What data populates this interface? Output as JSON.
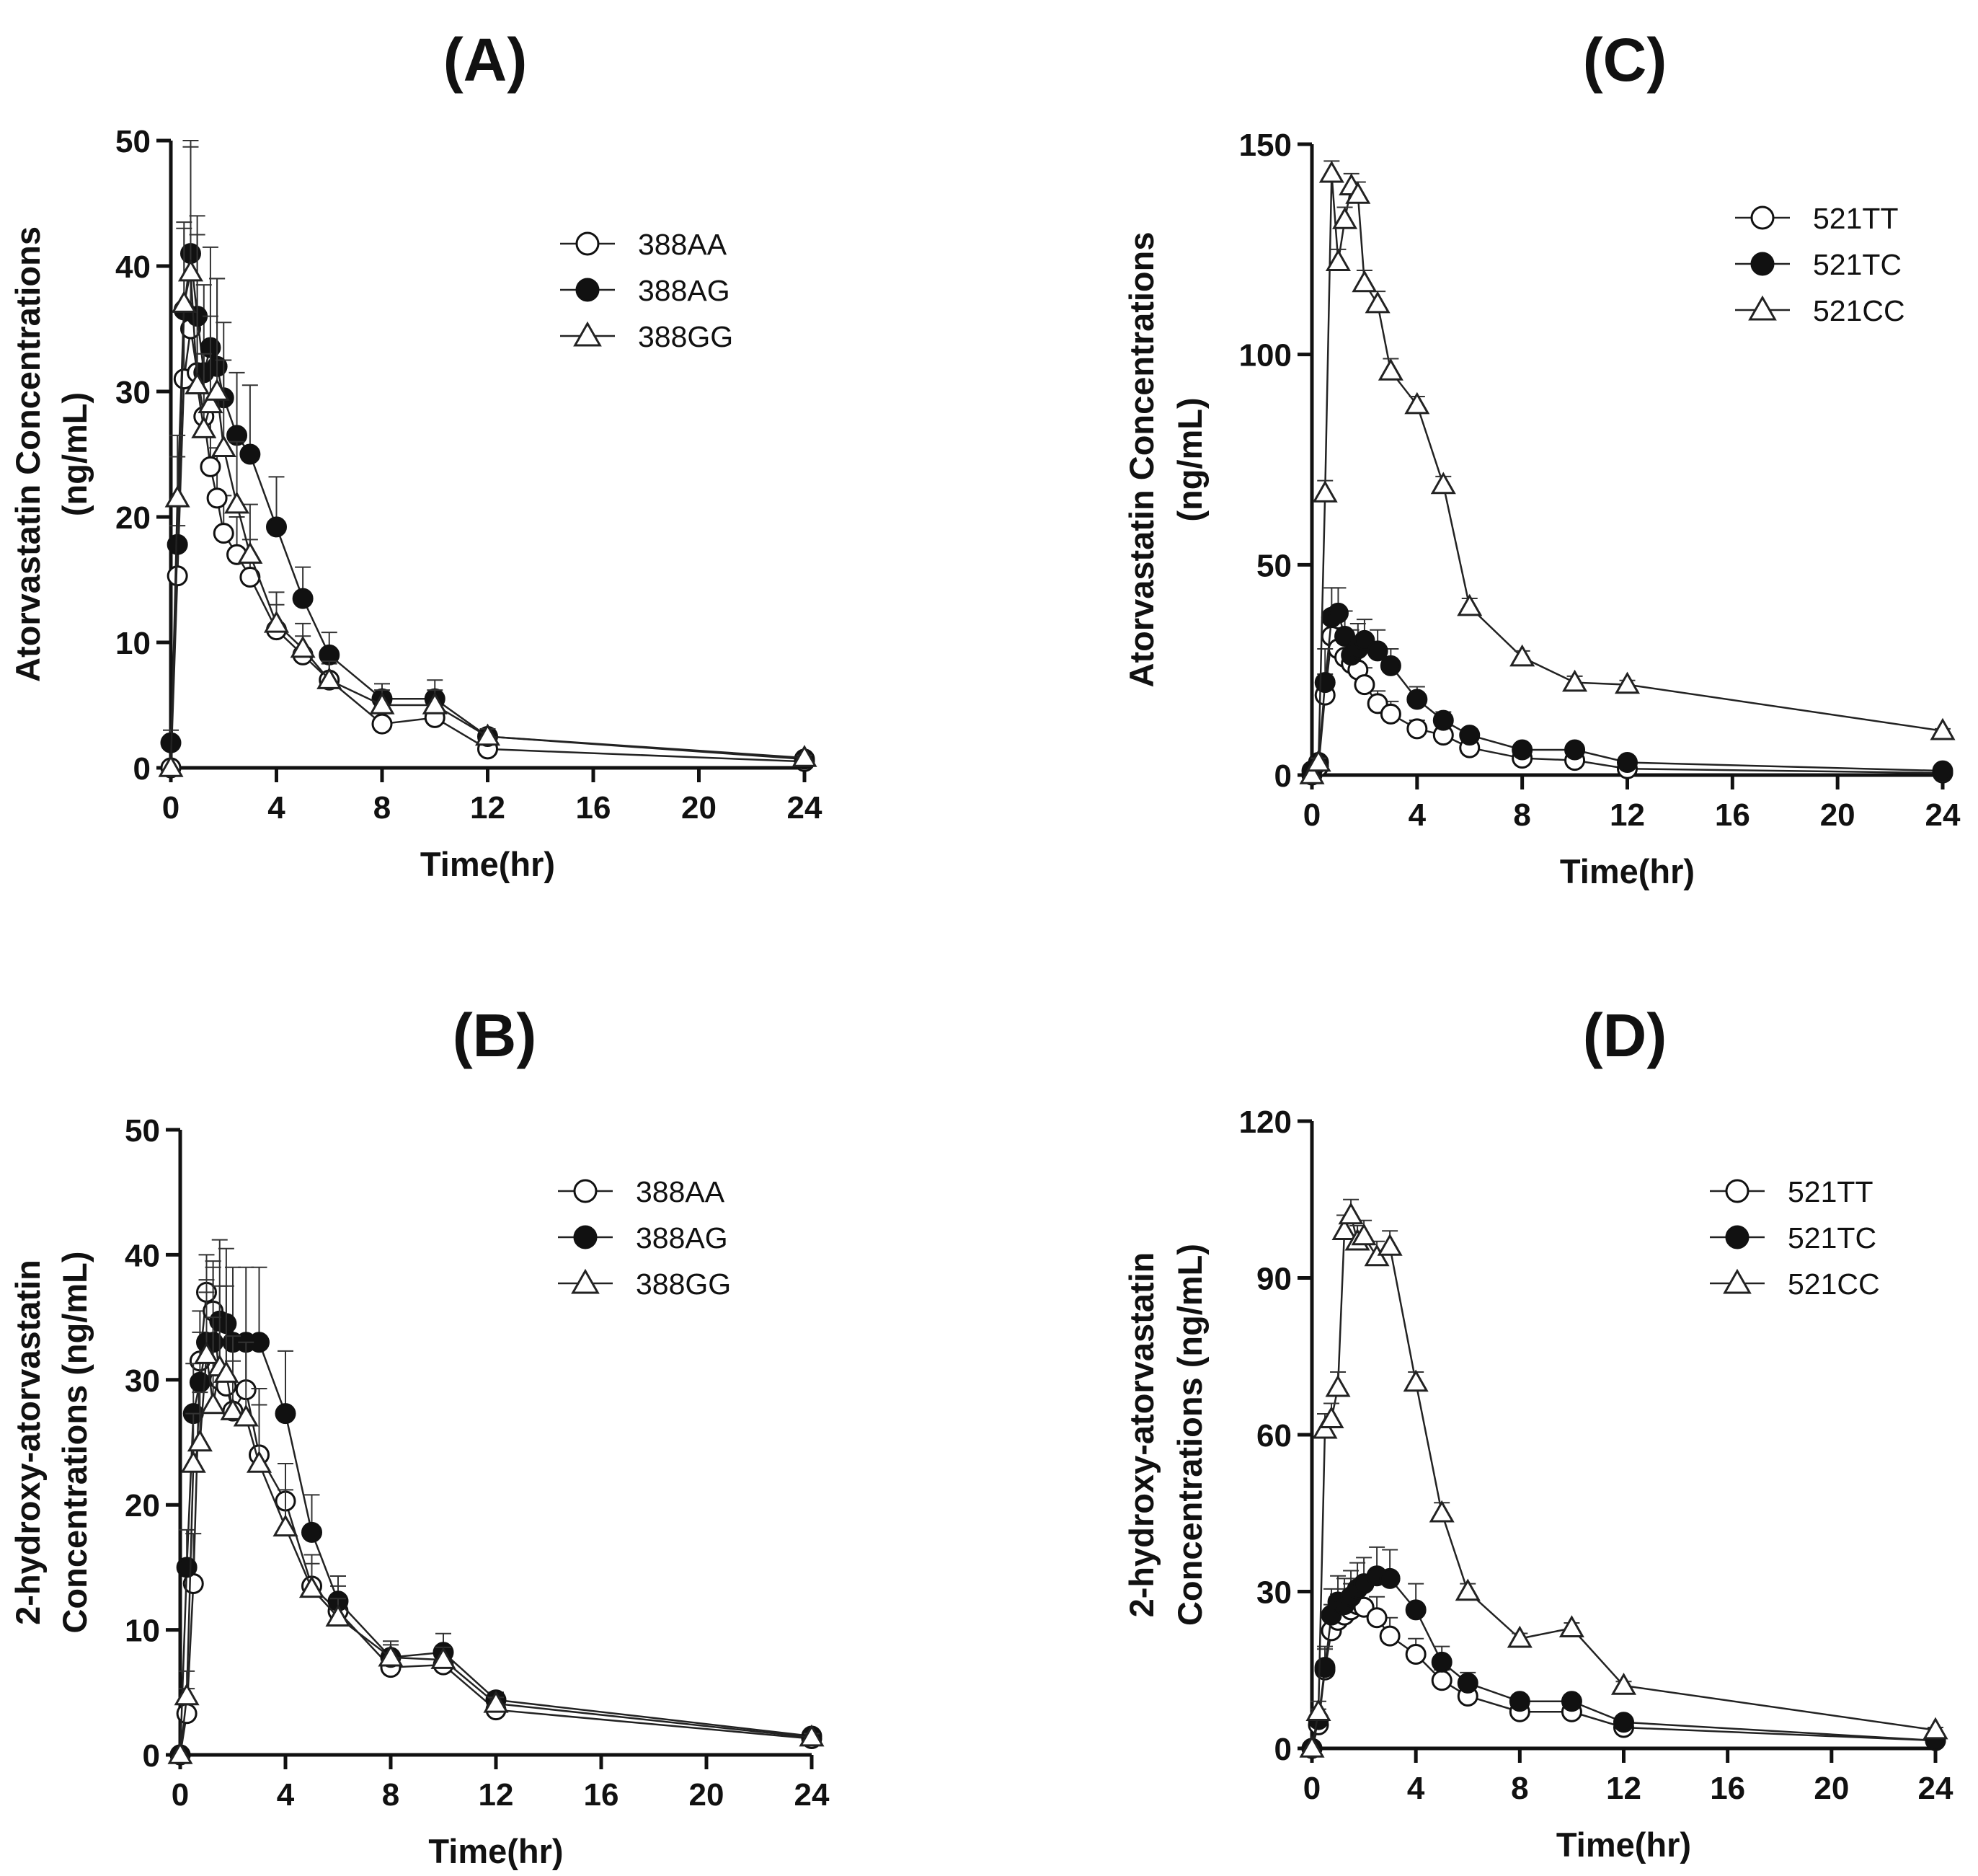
{
  "chart_data": [
    {
      "panel": "(A)",
      "type": "line",
      "xlabel": "Time(hr)",
      "ylabel": [
        "Atorvastatin Concentrations",
        "(ng/mL)"
      ],
      "xlim": [
        0,
        24
      ],
      "ylim": [
        0,
        50
      ],
      "xticks": [
        0,
        4,
        8,
        12,
        16,
        20,
        24
      ],
      "yticks": [
        0,
        10,
        20,
        30,
        40,
        50
      ],
      "legend": "top-right",
      "series": [
        {
          "name": "388AA",
          "marker": "circle-open",
          "x": [
            0,
            0.25,
            0.5,
            0.75,
            1,
            1.25,
            1.5,
            1.75,
            2,
            2.5,
            3,
            4,
            5,
            6,
            8,
            10,
            12,
            24
          ],
          "y": [
            0,
            15.3,
            31,
            35,
            31.5,
            28,
            24,
            21.5,
            18.7,
            17,
            15.2,
            11,
            9,
            7,
            3.5,
            4,
            1.5,
            0.5
          ],
          "err": [
            0,
            4,
            5,
            6,
            5,
            5,
            5,
            4,
            3,
            3,
            3,
            2,
            1.5,
            1.3,
            1,
            1,
            0.5,
            0.2
          ]
        },
        {
          "name": "388AG",
          "marker": "circle-filled",
          "x": [
            0,
            0.25,
            0.5,
            0.75,
            1,
            1.25,
            1.5,
            1.75,
            2,
            2.5,
            3,
            4,
            5,
            6,
            8,
            10,
            12,
            24
          ],
          "y": [
            2,
            17.8,
            36.5,
            41,
            36,
            31.5,
            33.5,
            32,
            29.5,
            26.5,
            25,
            19.2,
            13.5,
            9,
            5.5,
            5.5,
            2.5,
            0.7
          ],
          "err": [
            1,
            7,
            7,
            9,
            8,
            7,
            8,
            7,
            6,
            5,
            5.5,
            4,
            2.5,
            1.8,
            1.2,
            1.5,
            0.6,
            0.2
          ]
        },
        {
          "name": "388GG",
          "marker": "triangle-open",
          "x": [
            0,
            0.25,
            0.5,
            0.75,
            1,
            1.25,
            1.5,
            1.75,
            2,
            2.5,
            3,
            4,
            5,
            6,
            8,
            10,
            12,
            24
          ],
          "y": [
            0,
            21.5,
            37,
            39.5,
            30.5,
            27,
            29,
            30,
            25.5,
            21,
            17,
            11.5,
            9.5,
            7,
            5,
            5,
            2.5,
            0.8
          ],
          "err": [
            0,
            5,
            6,
            10,
            12,
            6,
            7,
            9,
            7,
            5,
            4,
            2.5,
            2,
            1.5,
            1.2,
            1.2,
            0.6,
            0.2
          ]
        }
      ]
    },
    {
      "panel": "(B)",
      "type": "line",
      "xlabel": "Time(hr)",
      "ylabel": [
        "2-hydroxy-atorvastatin",
        "Concentrations (ng/mL)"
      ],
      "xlim": [
        0,
        24
      ],
      "ylim": [
        0,
        50
      ],
      "xticks": [
        0,
        4,
        8,
        12,
        16,
        20,
        24
      ],
      "yticks": [
        0,
        10,
        20,
        30,
        40,
        50
      ],
      "legend": "top-right",
      "series": [
        {
          "name": "388AA",
          "marker": "circle-open",
          "x": [
            0,
            0.25,
            0.5,
            0.75,
            1,
            1.25,
            1.5,
            1.75,
            2,
            2.5,
            3,
            4,
            5,
            6,
            8,
            10,
            12,
            24
          ],
          "y": [
            0,
            3.3,
            13.7,
            31.5,
            37,
            35.5,
            30,
            29.5,
            27.5,
            29.2,
            24,
            20.3,
            13.5,
            11.5,
            7,
            7.2,
            3.6,
            1.3
          ],
          "err": [
            0,
            2,
            4,
            4,
            3,
            4,
            5,
            5,
            4,
            4,
            4,
            3,
            2.5,
            2,
            1.2,
            1.2,
            0.6,
            0.3
          ]
        },
        {
          "name": "388AG",
          "marker": "circle-filled",
          "x": [
            0,
            0.25,
            0.5,
            0.75,
            1,
            1.25,
            1.5,
            1.75,
            2,
            2.5,
            3,
            4,
            5,
            6,
            8,
            10,
            12,
            24
          ],
          "y": [
            0,
            15,
            27.3,
            29.8,
            33,
            33,
            34.7,
            34.5,
            33,
            33,
            33,
            27.3,
            17.8,
            12.3,
            7.8,
            8.2,
            4.4,
            1.5
          ],
          "err": [
            0,
            3,
            4,
            4,
            5,
            6,
            6.5,
            6,
            6,
            6,
            6,
            5,
            3,
            2,
            1.3,
            1.5,
            0.6,
            0.3
          ]
        },
        {
          "name": "388GG",
          "marker": "triangle-open",
          "x": [
            0,
            0.25,
            0.5,
            0.75,
            1,
            1.25,
            1.5,
            1.75,
            2,
            2.5,
            3,
            4,
            5,
            6,
            8,
            10,
            12,
            24
          ],
          "y": [
            0,
            4.7,
            23.3,
            25,
            32,
            28,
            31,
            30.5,
            27.5,
            27,
            23.3,
            18.2,
            13.3,
            11,
            7.8,
            7.6,
            4.1,
            1.4
          ],
          "err": [
            0,
            2,
            4,
            4,
            5,
            7,
            6.5,
            7,
            6,
            6,
            6,
            3,
            2,
            1.5,
            1,
            1,
            0.5,
            0.3
          ]
        }
      ]
    },
    {
      "panel": "(C)",
      "type": "line",
      "xlabel": "Time(hr)",
      "ylabel": [
        "Atorvastatin Concentrations",
        "(ng/mL)"
      ],
      "xlim": [
        0,
        24
      ],
      "ylim": [
        0,
        150
      ],
      "xticks": [
        0,
        4,
        8,
        12,
        16,
        20,
        24
      ],
      "yticks": [
        0,
        50,
        100,
        150
      ],
      "legend": "top-right",
      "series": [
        {
          "name": "521TT",
          "marker": "circle-open",
          "x": [
            0,
            0.25,
            0.5,
            0.75,
            1,
            1.25,
            1.5,
            1.75,
            2,
            2.5,
            3,
            4,
            5,
            6,
            8,
            10,
            12,
            24
          ],
          "y": [
            0,
            2,
            19,
            33,
            30,
            28,
            26.5,
            25,
            21.5,
            17,
            14.5,
            11,
            9.5,
            6.5,
            4,
            3.5,
            1.5,
            0.5
          ],
          "err": [
            0,
            1,
            5,
            6,
            5,
            5,
            5,
            4,
            4,
            3,
            3,
            2,
            1.5,
            1.2,
            1,
            1,
            0.5,
            0.2
          ]
        },
        {
          "name": "521TC",
          "marker": "circle-filled",
          "x": [
            0,
            0.25,
            0.5,
            0.75,
            1,
            1.25,
            1.5,
            1.75,
            2,
            2.5,
            3,
            4,
            5,
            6,
            8,
            10,
            12,
            24
          ],
          "y": [
            1,
            3,
            22,
            37.5,
            38.5,
            33,
            28.5,
            30,
            32,
            29.5,
            26,
            18,
            13,
            9.5,
            6,
            6,
            3,
            1
          ],
          "err": [
            0.5,
            1,
            8,
            7,
            6,
            6,
            6,
            6,
            5,
            5,
            4,
            3,
            2,
            1.5,
            1,
            1,
            0.5,
            0.2
          ]
        },
        {
          "name": "521CC",
          "marker": "triangle-open",
          "x": [
            0,
            0.25,
            0.5,
            0.75,
            1,
            1.25,
            1.5,
            1.75,
            2,
            2.5,
            3,
            4,
            5,
            6,
            8,
            10,
            12,
            24
          ],
          "y": [
            0,
            3,
            67,
            143,
            122,
            132,
            140,
            138,
            117,
            112,
            96,
            88,
            69,
            40,
            28,
            22,
            21.5,
            10.5
          ],
          "err": [
            0,
            1,
            3,
            3,
            3,
            3,
            3,
            3,
            3,
            3,
            3,
            2,
            2,
            2,
            1.5,
            1.5,
            1,
            0.5
          ]
        }
      ]
    },
    {
      "panel": "(D)",
      "type": "line",
      "xlabel": "Time(hr)",
      "ylabel": [
        "2-hydroxy-atorvastatin",
        "Concentrations (ng/mL)"
      ],
      "xlim": [
        0,
        24
      ],
      "ylim": [
        0,
        120
      ],
      "xticks": [
        0,
        4,
        8,
        12,
        16,
        20,
        24
      ],
      "yticks": [
        0,
        30,
        60,
        90,
        120
      ],
      "legend": "top-right",
      "series": [
        {
          "name": "521TT",
          "marker": "circle-open",
          "x": [
            0,
            0.25,
            0.5,
            0.75,
            1,
            1.25,
            1.5,
            1.75,
            2,
            2.5,
            3,
            4,
            5,
            6,
            8,
            10,
            12,
            24
          ],
          "y": [
            0,
            4.5,
            15,
            22.5,
            24.5,
            25.5,
            26.5,
            27.5,
            27,
            25,
            21.5,
            18,
            13,
            10,
            7,
            7,
            4,
            1.5
          ],
          "err": [
            0,
            2,
            4,
            5,
            5,
            5,
            5,
            5,
            4,
            4,
            3.5,
            3,
            2,
            1.5,
            1,
            1,
            0.5,
            0.3
          ]
        },
        {
          "name": "521TC",
          "marker": "circle-filled",
          "x": [
            0,
            0.25,
            0.5,
            0.75,
            1,
            1.25,
            1.5,
            1.75,
            2,
            2.5,
            3,
            4,
            5,
            6,
            8,
            10,
            12,
            24
          ],
          "y": [
            0,
            5.5,
            15.5,
            25.5,
            28,
            27.5,
            29,
            30.5,
            31.5,
            33,
            32.5,
            26.5,
            16.5,
            12.5,
            9,
            9,
            5,
            1.5
          ],
          "err": [
            0,
            2,
            4,
            5,
            5,
            5,
            5,
            5,
            5,
            5.5,
            5.5,
            5,
            3,
            2,
            1.2,
            1.2,
            0.6,
            0.3
          ]
        },
        {
          "name": "521CC",
          "marker": "triangle-open",
          "x": [
            0,
            0.25,
            0.5,
            0.75,
            1,
            1.25,
            1.5,
            1.75,
            2,
            2.5,
            3,
            4,
            5,
            6,
            8,
            10,
            12,
            24
          ],
          "y": [
            0,
            7,
            61,
            63,
            69,
            99,
            102,
            97,
            98,
            94,
            96,
            70,
            45,
            30,
            21,
            23,
            12,
            3.5
          ],
          "err": [
            0,
            2,
            3,
            3,
            3,
            3,
            3,
            3,
            3,
            3,
            3,
            2,
            2,
            1.5,
            1,
            1,
            0.8,
            0.5
          ]
        }
      ]
    }
  ]
}
